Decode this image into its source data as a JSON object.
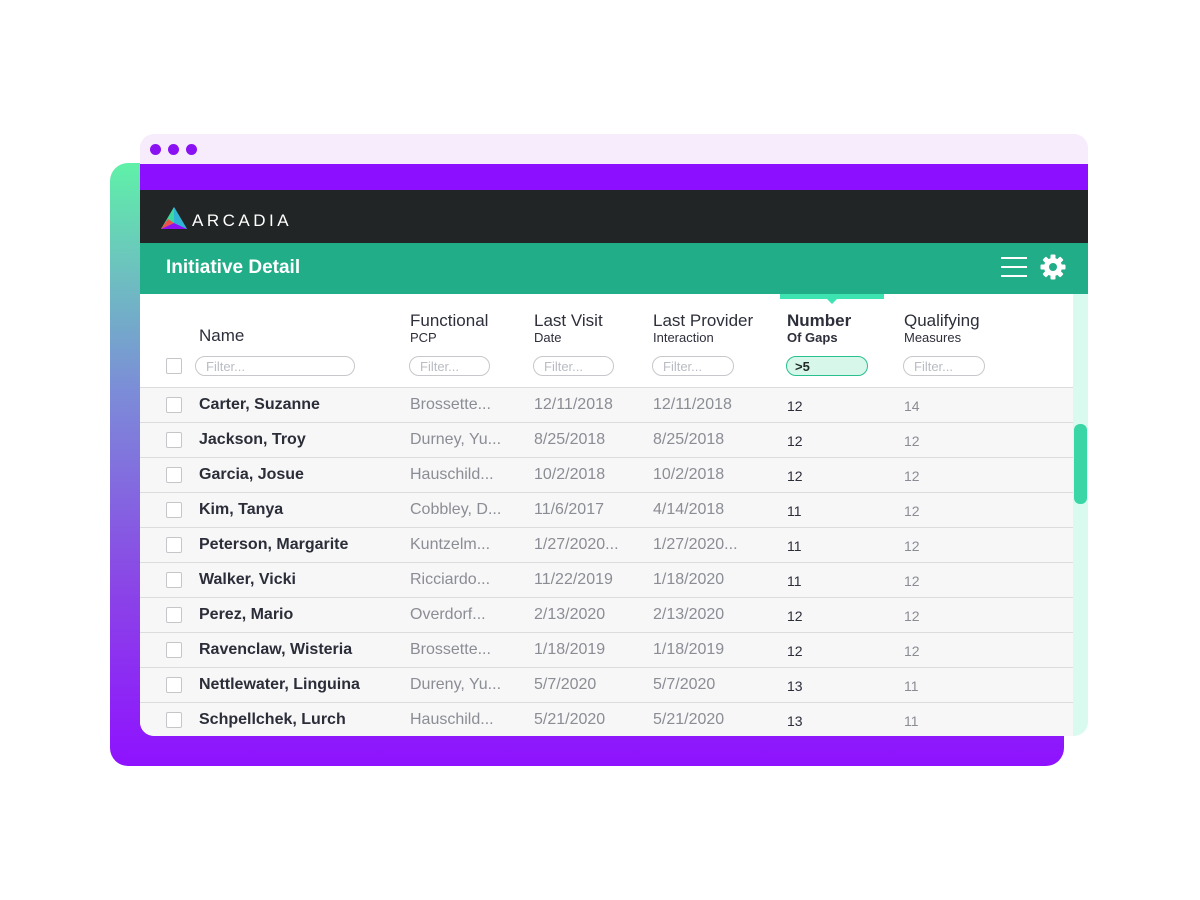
{
  "app": {
    "brand": "ARCADIA",
    "page_title": "Initiative Detail"
  },
  "table": {
    "columns": [
      {
        "title": "Name",
        "subtitle": "",
        "filter_placeholder": "Filter...",
        "filter_value": ""
      },
      {
        "title": "Functional",
        "subtitle": "PCP",
        "filter_placeholder": "Filter...",
        "filter_value": ""
      },
      {
        "title": "Last Visit",
        "subtitle": "Date",
        "filter_placeholder": "Filter...",
        "filter_value": ""
      },
      {
        "title": "Last Provider",
        "subtitle": "Interaction",
        "filter_placeholder": "Filter...",
        "filter_value": ""
      },
      {
        "title": "Number",
        "subtitle": "Of Gaps",
        "filter_placeholder": "",
        "filter_value": ">5"
      },
      {
        "title": "Qualifying",
        "subtitle": "Measures",
        "filter_placeholder": "Filter...",
        "filter_value": ""
      }
    ],
    "rows": [
      {
        "name": "Carter, Suzanne",
        "pcp": "Brossette...",
        "last_visit": "12/11/2018",
        "last_provider": "12/11/2018",
        "gaps": "12",
        "measures": "14"
      },
      {
        "name": "Jackson, Troy",
        "pcp": "Durney, Yu...",
        "last_visit": "8/25/2018",
        "last_provider": "8/25/2018",
        "gaps": "12",
        "measures": "12"
      },
      {
        "name": "Garcia, Josue",
        "pcp": "Hauschild...",
        "last_visit": "10/2/2018",
        "last_provider": "10/2/2018",
        "gaps": "12",
        "measures": "12"
      },
      {
        "name": "Kim, Tanya",
        "pcp": "Cobbley, D...",
        "last_visit": "11/6/2017",
        "last_provider": "4/14/2018",
        "gaps": "11",
        "measures": "12"
      },
      {
        "name": "Peterson, Margarite",
        "pcp": "Kuntzelm...",
        "last_visit": "1/27/2020...",
        "last_provider": "1/27/2020...",
        "gaps": "11",
        "measures": "12"
      },
      {
        "name": "Walker, Vicki",
        "pcp": "Ricciardo...",
        "last_visit": "11/22/2019",
        "last_provider": "1/18/2020",
        "gaps": "11",
        "measures": "12"
      },
      {
        "name": "Perez, Mario",
        "pcp": "Overdorf...",
        "last_visit": "2/13/2020",
        "last_provider": "2/13/2020",
        "gaps": "12",
        "measures": "12"
      },
      {
        "name": "Ravenclaw, Wisteria",
        "pcp": "Brossette...",
        "last_visit": "1/18/2019",
        "last_provider": "1/18/2019",
        "gaps": "12",
        "measures": "12"
      },
      {
        "name": "Nettlewater, Linguina",
        "pcp": "Dureny, Yu...",
        "last_visit": "5/7/2020",
        "last_provider": "5/7/2020",
        "gaps": "13",
        "measures": "11"
      },
      {
        "name": "Schpellchek, Lurch",
        "pcp": "Hauschild...",
        "last_visit": "5/21/2020",
        "last_provider": "5/21/2020",
        "gaps": "13",
        "measures": "11"
      }
    ]
  },
  "icons": {
    "menu": "hamburger-menu-icon",
    "settings": "gear-icon",
    "logo": "arcadia-logo-icon"
  },
  "colors": {
    "brand_purple": "#8c0fff",
    "brand_green": "#21ad88",
    "nav_dark": "#222525",
    "accent_mint": "#3ee3b2"
  }
}
